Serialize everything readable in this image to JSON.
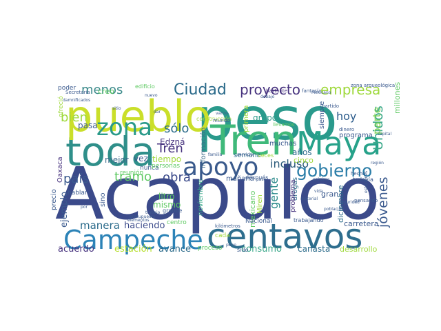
{
  "cloud": {
    "words": [
      {
        "text": "Acapulco",
        "color": "#3b4a8a"
      },
      {
        "text": "peso",
        "color": "#2a9a8c"
      },
      {
        "text": "centavos",
        "color": "#2e6e8e"
      },
      {
        "text": "Tren",
        "color": "#3fb97a"
      },
      {
        "text": "Maya",
        "color": "#27a28a"
      },
      {
        "text": "toda",
        "color": "#2f8f8a"
      },
      {
        "text": "pueblo",
        "color": "#cadf2a"
      },
      {
        "text": "Campeche",
        "color": "#2c83b7"
      },
      {
        "text": "apoyo",
        "color": "#3a5a8c"
      },
      {
        "text": "zona",
        "color": "#2a9a8a"
      },
      {
        "text": "Ciudad",
        "color": "#2a6a8a"
      },
      {
        "text": "proyecto",
        "color": "#46327e"
      },
      {
        "text": "empresa",
        "color": "#9fd93c"
      },
      {
        "text": "gobierno",
        "color": "#2c7ea8"
      },
      {
        "text": "Unidos",
        "color": "#3aa88a"
      },
      {
        "text": "jóvenes",
        "color": "#3b5a8e"
      },
      {
        "text": "hoy",
        "color": "#2a5a8a"
      },
      {
        "text": "parte",
        "color": "#7ad151"
      },
      {
        "text": "menos",
        "color": "#3b8a8a"
      },
      {
        "text": "bien",
        "color": "#9fd93c"
      },
      {
        "text": "sólo",
        "color": "#2a6a8a"
      },
      {
        "text": "Tren",
        "color": "#46327e"
      },
      {
        "text": "obra",
        "color": "#3b4a8a"
      },
      {
        "text": "incluso",
        "color": "#2a5a7a"
      },
      {
        "text": "país",
        "color": "#3b5a8e"
      },
      {
        "text": "tramo",
        "color": "#5ec962"
      },
      {
        "text": "gente",
        "color": "#2a8a8a"
      },
      {
        "text": "manera",
        "color": "#2a6a8a"
      },
      {
        "text": "ejemplo",
        "color": "#3b5a8e"
      },
      {
        "text": "haciendo",
        "color": "#3b4a8a"
      },
      {
        "text": "acuerdo",
        "color": "#46327e"
      },
      {
        "text": "estación",
        "color": "#b5de2b"
      },
      {
        "text": "avance",
        "color": "#2a6a8a"
      },
      {
        "text": "consumo",
        "color": "#3aa88a"
      },
      {
        "text": "canasta",
        "color": "#2a6a8a"
      },
      {
        "text": "desarrollo",
        "color": "#9fd93c"
      },
      {
        "text": "carretera",
        "color": "#3b5a8e"
      },
      {
        "text": "Edzná",
        "color": "#46327e"
      },
      {
        "text": "mejor",
        "color": "#3b6a8a"
      },
      {
        "text": "tiempo",
        "color": "#9fd93c"
      },
      {
        "text": "litro",
        "color": "#5ec962"
      },
      {
        "text": "mismo",
        "color": "#5ec962"
      },
      {
        "text": "años",
        "color": "#2a6a8a"
      },
      {
        "text": "cinco",
        "color": "#9fd93c"
      },
      {
        "text": "grupo",
        "color": "#2a9a8a"
      },
      {
        "text": "semana",
        "color": "#2a6a8a"
      },
      {
        "text": "primera",
        "color": "#9fd93c"
      },
      {
        "text": "información",
        "color": "#3b6a8a"
      },
      {
        "text": "siempre",
        "color": "#3b5a8e"
      },
      {
        "text": "millones",
        "color": "#5ec962"
      },
      {
        "text": "programa",
        "color": "#3b5a8e"
      },
      {
        "text": "drogas",
        "color": "#2a6a8a"
      },
      {
        "text": "problema",
        "color": "#46327e"
      },
      {
        "text": "diciembre",
        "color": "#2a6a8a"
      },
      {
        "text": "mexicano",
        "color": "#5ec962"
      },
      {
        "text": "Nacional",
        "color": "#3b5a8e"
      },
      {
        "text": "Miren",
        "color": "#9fd93c"
      },
      {
        "text": "noviembre",
        "color": "#3aa88a"
      },
      {
        "text": "Oaxaca",
        "color": "#46327e"
      },
      {
        "text": "precio",
        "color": "#3b5a8e"
      },
      {
        "text": "sino",
        "color": "#3b5a8e"
      },
      {
        "text": "pasa",
        "color": "#3b5a8e"
      },
      {
        "text": "vez",
        "color": "#3b5a8e"
      },
      {
        "text": "mañana",
        "color": "#3b5a8e"
      },
      {
        "text": "hablar",
        "color": "#3b5a8e"
      },
      {
        "text": "muchas",
        "color": "#3b5a8e"
      },
      {
        "text": "creo",
        "color": "#5ec962"
      },
      {
        "text": "poder",
        "color": "#3b5a8e"
      },
      {
        "text": "nunca",
        "color": "#3b5a8e"
      },
      {
        "text": "reunión",
        "color": "#5ec962"
      },
      {
        "text": "personas",
        "color": "#5ec962"
      },
      {
        "text": "centro",
        "color": "#5ec962"
      },
      {
        "text": "después",
        "color": "#3b5a8e"
      },
      {
        "text": "todavía",
        "color": "#3b5a8e"
      },
      {
        "text": "trabajando",
        "color": "#3b5a8e"
      },
      {
        "text": "proceso",
        "color": "#5ec962"
      },
      {
        "text": "cada",
        "color": "#9fd93c"
      },
      {
        "text": "sido",
        "color": "#3b5a8e"
      },
      {
        "text": "gran",
        "color": "#3b5a8e"
      },
      {
        "text": "edificio",
        "color": "#5ec962"
      },
      {
        "text": "ofreció",
        "color": "#9fd93c"
      },
      {
        "text": "Secretaría",
        "color": "#3b5a8e"
      },
      {
        "text": "construcción",
        "color": "#9fd93c"
      },
      {
        "text": "mundo",
        "color": "#3b5a8e"
      },
      {
        "text": "grande",
        "color": "#3b5a8e"
      },
      {
        "text": "kilómetros",
        "color": "#3b5a8e"
      },
      {
        "text": "bastante",
        "color": "#46327e"
      },
      {
        "text": "zona arqueológica",
        "color": "#3b5a8e"
      },
      {
        "text": "dinero",
        "color": "#3b5a8e"
      },
      {
        "text": "pensando",
        "color": "#3b5a8e"
      },
      {
        "text": "hecho",
        "color": "#3b5a8e"
      },
      {
        "text": "región",
        "color": "#3b5a8e"
      },
      {
        "text": "capital",
        "color": "#3b5a8e"
      },
      {
        "text": "seguridad",
        "color": "#3b5a8e"
      },
      {
        "text": "presupuesto",
        "color": "#3b5a8e"
      },
      {
        "text": "material",
        "color": "#3b5a8e"
      },
      {
        "text": "población",
        "color": "#3b5a8e"
      },
      {
        "text": "veces",
        "color": "#9fd93c"
      },
      {
        "text": "servicio",
        "color": "#3b5a8e"
      },
      {
        "text": "familia",
        "color": "#3b5a8e"
      },
      {
        "text": "partido",
        "color": "#3b5a8e"
      },
      {
        "text": "llevamos",
        "color": "#5ec962"
      },
      {
        "text": "fantasía",
        "color": "#3b5a8e"
      },
      {
        "text": "debajo",
        "color": "#3b5a8e"
      },
      {
        "text": "damnificados",
        "color": "#3b5a8e"
      },
      {
        "text": "nuevo",
        "color": "#3b5a8e"
      },
      {
        "text": "sitio",
        "color": "#3b5a8e"
      },
      {
        "text": "varios",
        "color": "#3b5a8e"
      },
      {
        "text": "trabajo",
        "color": "#3b5a8e"
      },
      {
        "text": "elementos",
        "color": "#3b5a8e"
      },
      {
        "text": "próximo",
        "color": "#3b5a8e"
      },
      {
        "text": "paso",
        "color": "#3b5a8e"
      },
      {
        "text": "vida",
        "color": "#3b5a8e"
      },
      {
        "text": "estaciones",
        "color": "#3b5a8e"
      },
      {
        "text": "Mexicano",
        "color": "#3b5a8e"
      },
      {
        "text": "dar",
        "color": "#3b5a8e"
      },
      {
        "text": "por",
        "color": "#3b5a8e"
      },
      {
        "text": "pone",
        "color": "#3b5a8e"
      }
    ]
  }
}
